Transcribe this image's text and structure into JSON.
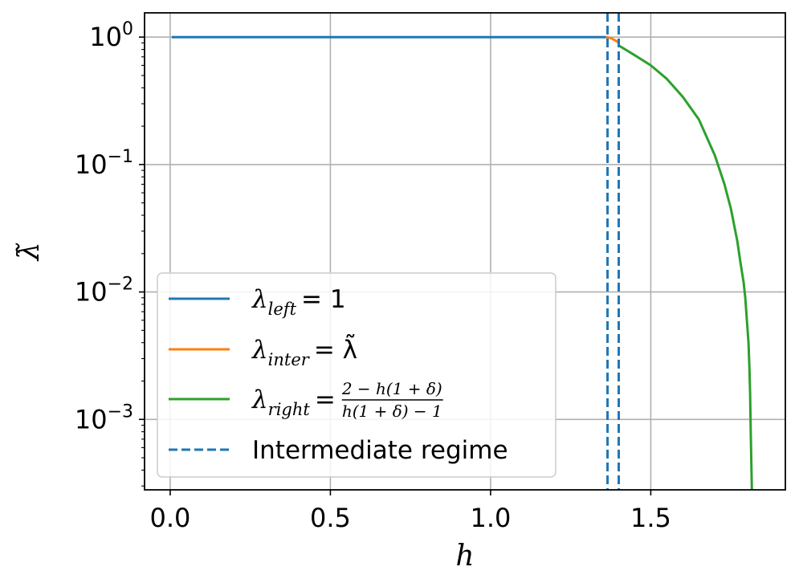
{
  "chart_data": {
    "type": "line",
    "xlabel": "h",
    "ylabel": "λ̃",
    "xscale": "linear",
    "yscale": "log",
    "xlim": [
      -0.08,
      1.92
    ],
    "ylim": [
      0.00028,
      1.55
    ],
    "xticks": [
      0.0,
      0.5,
      1.0,
      1.5
    ],
    "xtick_labels": [
      "0.0",
      "0.5",
      "1.0",
      "1.5"
    ],
    "yticks": [
      1,
      0.1,
      0.01,
      0.001
    ],
    "ytick_labels": [
      {
        "base": "10",
        "exp": "0"
      },
      {
        "base": "10",
        "exp": "−1"
      },
      {
        "base": "10",
        "exp": "−2"
      },
      {
        "base": "10",
        "exp": "−3"
      }
    ],
    "grid": true,
    "legend_position": "lower-left",
    "series": [
      {
        "name": "λleft = 1",
        "color": "#1f77b4",
        "style": "solid",
        "x": [
          0.005,
          1.36
        ],
        "y": [
          1.0,
          1.0
        ]
      },
      {
        "name": "λinter = λ̃",
        "color": "#ff7f0e",
        "style": "solid",
        "x": [
          1.36,
          1.37,
          1.38,
          1.39,
          1.4
        ],
        "y": [
          1.0,
          0.99,
          0.97,
          0.94,
          0.905
        ]
      },
      {
        "name": "λright = (2 − h(1+δ)) / (h(1+δ) − 1)",
        "color": "#2ca02c",
        "style": "solid",
        "x": [
          1.4,
          1.45,
          1.5,
          1.55,
          1.6,
          1.65,
          1.7,
          1.73,
          1.75,
          1.77,
          1.78,
          1.79,
          1.795,
          1.8,
          1.805,
          1.808,
          1.81,
          1.812,
          1.8155
        ],
        "y": [
          0.86,
          0.72,
          0.6,
          0.47,
          0.34,
          0.226,
          0.118,
          0.07,
          0.045,
          0.025,
          0.017,
          0.0118,
          0.009,
          0.006,
          0.004,
          0.0025,
          0.0016,
          0.0008,
          0.00028
        ]
      }
    ],
    "vlines": [
      {
        "x": 1.365,
        "color": "#1f77b4",
        "style": "dashed"
      },
      {
        "x": 1.4,
        "color": "#1f77b4",
        "style": "dashed"
      }
    ],
    "legend": [
      {
        "kind": "line",
        "color": "#1f77b4",
        "style": "solid",
        "sym": "λ",
        "sub": "left",
        "eq": "= 1"
      },
      {
        "kind": "line",
        "color": "#ff7f0e",
        "style": "solid",
        "sym": "λ",
        "sub": "inter",
        "eq": "= λ̃"
      },
      {
        "kind": "frac",
        "color": "#2ca02c",
        "style": "solid",
        "sym": "λ",
        "sub": "right",
        "eq": "=",
        "num": "2 − h(1 + δ)",
        "den": "h(1 + δ) − 1"
      },
      {
        "kind": "text",
        "color": "#1f77b4",
        "style": "dashed",
        "text": "Intermediate regime"
      }
    ]
  }
}
